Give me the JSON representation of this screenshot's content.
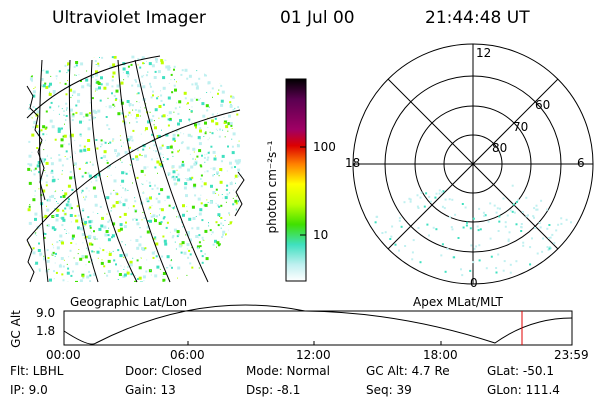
{
  "header": {
    "instrument": "Ultraviolet Imager",
    "date": "01 Jul 00",
    "time": "21:44:48 UT"
  },
  "colorbar": {
    "unit_label": "photon cm⁻²s⁻¹",
    "ticks": [
      "100",
      "10"
    ],
    "colors": [
      "#000000",
      "#5a0050",
      "#a00064",
      "#dc0000",
      "#ff8000",
      "#ffff00",
      "#c0ff00",
      "#40e000",
      "#40e0c0",
      "#c0f0f0",
      "#ffffff"
    ]
  },
  "polar_plot": {
    "mlt_labels": {
      "top": "12",
      "left": "18",
      "right": "6",
      "bottom": "0"
    },
    "lat_labels": [
      "60",
      "70",
      "80"
    ]
  },
  "map_labels": {
    "left": "Geographic Lat/Lon",
    "right": "Apex MLat/MLT"
  },
  "altitude_plot": {
    "ylabel": "GC Alt",
    "y_ticks": [
      "9.0",
      "1.8"
    ],
    "x_ticks": [
      "00:00",
      "06:00",
      "12:00",
      "18:00",
      "23:59"
    ],
    "marker_color": "#e00000"
  },
  "info": {
    "row1": {
      "filter": "Flt: LBHL",
      "door": "Door: Closed",
      "mode": "Mode: Normal",
      "gcalt": "GC Alt: 4.7 Re",
      "glat": "GLat: -50.1"
    },
    "row2": {
      "ip": "IP: 9.0",
      "gain": "Gain: 13",
      "dsp": "Dsp: -8.1",
      "seq": "Seq: 39",
      "glon": "GLon: 111.4"
    }
  }
}
